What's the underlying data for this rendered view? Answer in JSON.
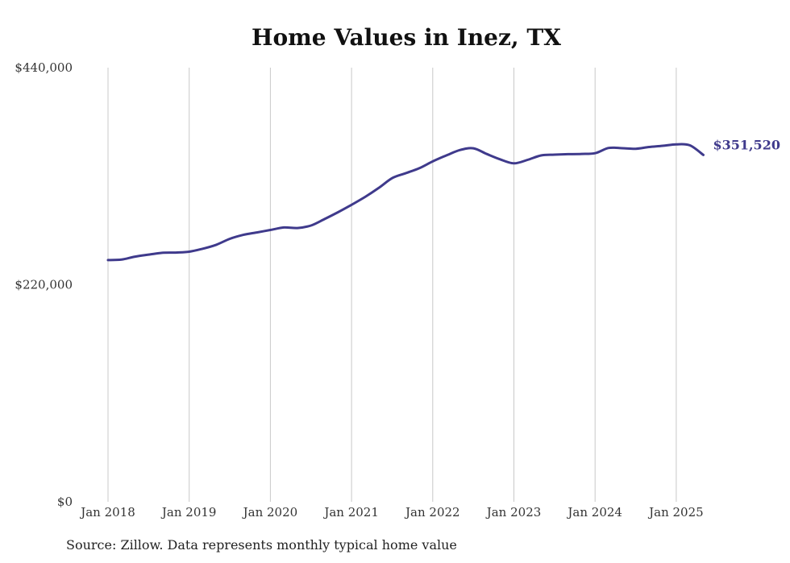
{
  "title": "Home Values in Inez, TX",
  "source_note": "Source: Zillow. Data represents monthly typical home value",
  "colors": {
    "line": "#3f3a8c",
    "grid": "#c8c8c8"
  },
  "chart_data": {
    "type": "line",
    "title": "Home Values in Inez, TX",
    "ylim": [
      0,
      440000
    ],
    "y_ticks": [
      0,
      220000,
      440000
    ],
    "y_tick_labels": [
      "$0",
      "$220,000",
      "$440,000"
    ],
    "x_tick_labels": [
      "Jan 2018",
      "Jan 2019",
      "Jan 2020",
      "Jan 2021",
      "Jan 2022",
      "Jan 2023",
      "Jan 2024",
      "Jan 2025"
    ],
    "grid": "vertical",
    "end_label": "$351,520",
    "series": [
      {
        "x": [
          "2018-01",
          "2018-03",
          "2018-05",
          "2018-07",
          "2018-09",
          "2018-11",
          "2019-01",
          "2019-03",
          "2019-05",
          "2019-07",
          "2019-09",
          "2019-11",
          "2020-01",
          "2020-03",
          "2020-05",
          "2020-07",
          "2020-09",
          "2020-11",
          "2021-01",
          "2021-03",
          "2021-05",
          "2021-07",
          "2021-09",
          "2021-11",
          "2022-01",
          "2022-03",
          "2022-05",
          "2022-07",
          "2022-09",
          "2022-11",
          "2023-01",
          "2023-03",
          "2023-05",
          "2023-07",
          "2023-09",
          "2023-11",
          "2024-01",
          "2024-03",
          "2024-05",
          "2024-07",
          "2024-09",
          "2024-11",
          "2025-01",
          "2025-03",
          "2025-05"
        ],
        "values": [
          245000,
          245500,
          248500,
          250500,
          252300,
          252600,
          253500,
          256500,
          260500,
          266500,
          270500,
          273000,
          275500,
          278000,
          277500,
          280000,
          286500,
          293500,
          301000,
          309000,
          318000,
          328000,
          333000,
          338000,
          345000,
          351000,
          356500,
          358300,
          352500,
          347000,
          343000,
          346500,
          351000,
          351800,
          352300,
          352600,
          353300,
          358600,
          358400,
          357800,
          359600,
          360800,
          362300,
          361300,
          351520
        ]
      }
    ]
  }
}
